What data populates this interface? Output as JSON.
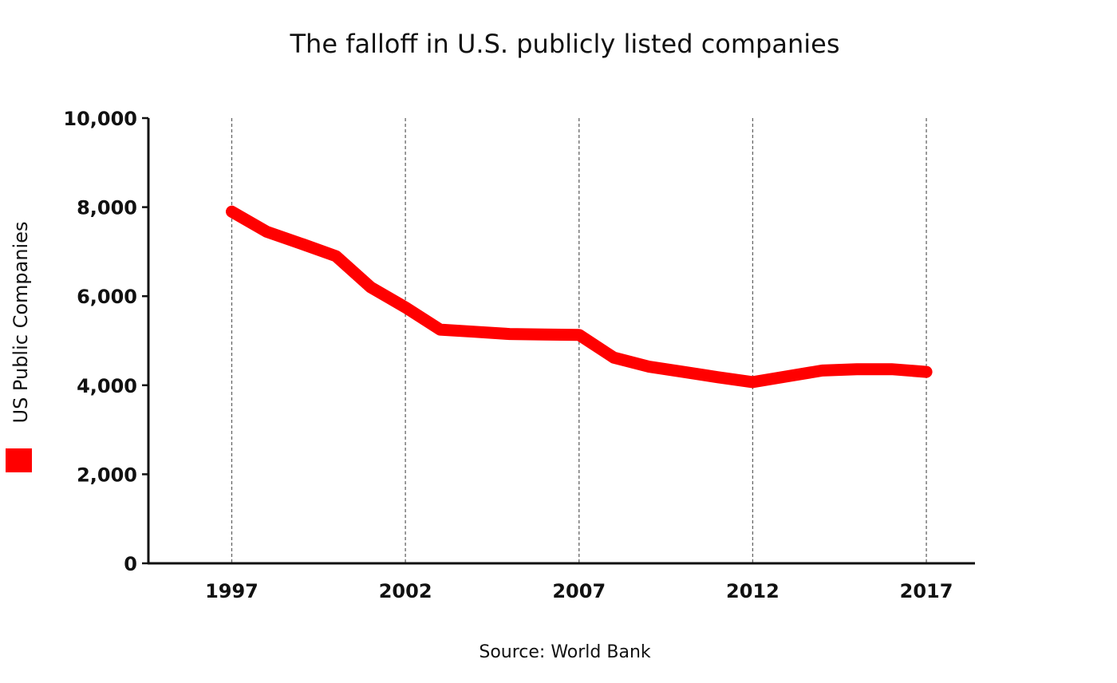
{
  "chart_data": {
    "type": "line",
    "title": "The falloff in U.S. publicly listed companies",
    "ylabel": "US Public Companies",
    "xlabel": "",
    "source": "Source: World Bank",
    "x_ticks": [
      "1997",
      "2002",
      "2007",
      "2012",
      "2017"
    ],
    "x_tick_values": [
      1997,
      2002,
      2007,
      2012,
      2017
    ],
    "y_ticks": [
      "0",
      "2,000",
      "4,000",
      "6,000",
      "8,000",
      "10,000"
    ],
    "y_tick_values": [
      0,
      2000,
      4000,
      6000,
      8000,
      10000
    ],
    "xlim": [
      1994.6,
      2018.4
    ],
    "ylim": [
      0,
      10000
    ],
    "grid": "vertical-dashed",
    "legend": "left",
    "series": [
      {
        "name": "US Public Companies",
        "color": "#ff0000",
        "x": [
          1997,
          1998,
          1999,
          2000,
          2001,
          2002,
          2003,
          2004,
          2005,
          2006,
          2007,
          2008,
          2009,
          2010,
          2011,
          2012,
          2013,
          2014,
          2015,
          2016,
          2017
        ],
        "values": [
          7900,
          7450,
          7180,
          6900,
          6200,
          5750,
          5250,
          5200,
          5150,
          5140,
          5130,
          4620,
          4420,
          4300,
          4180,
          4070,
          4200,
          4330,
          4360,
          4360,
          4300
        ]
      }
    ]
  }
}
